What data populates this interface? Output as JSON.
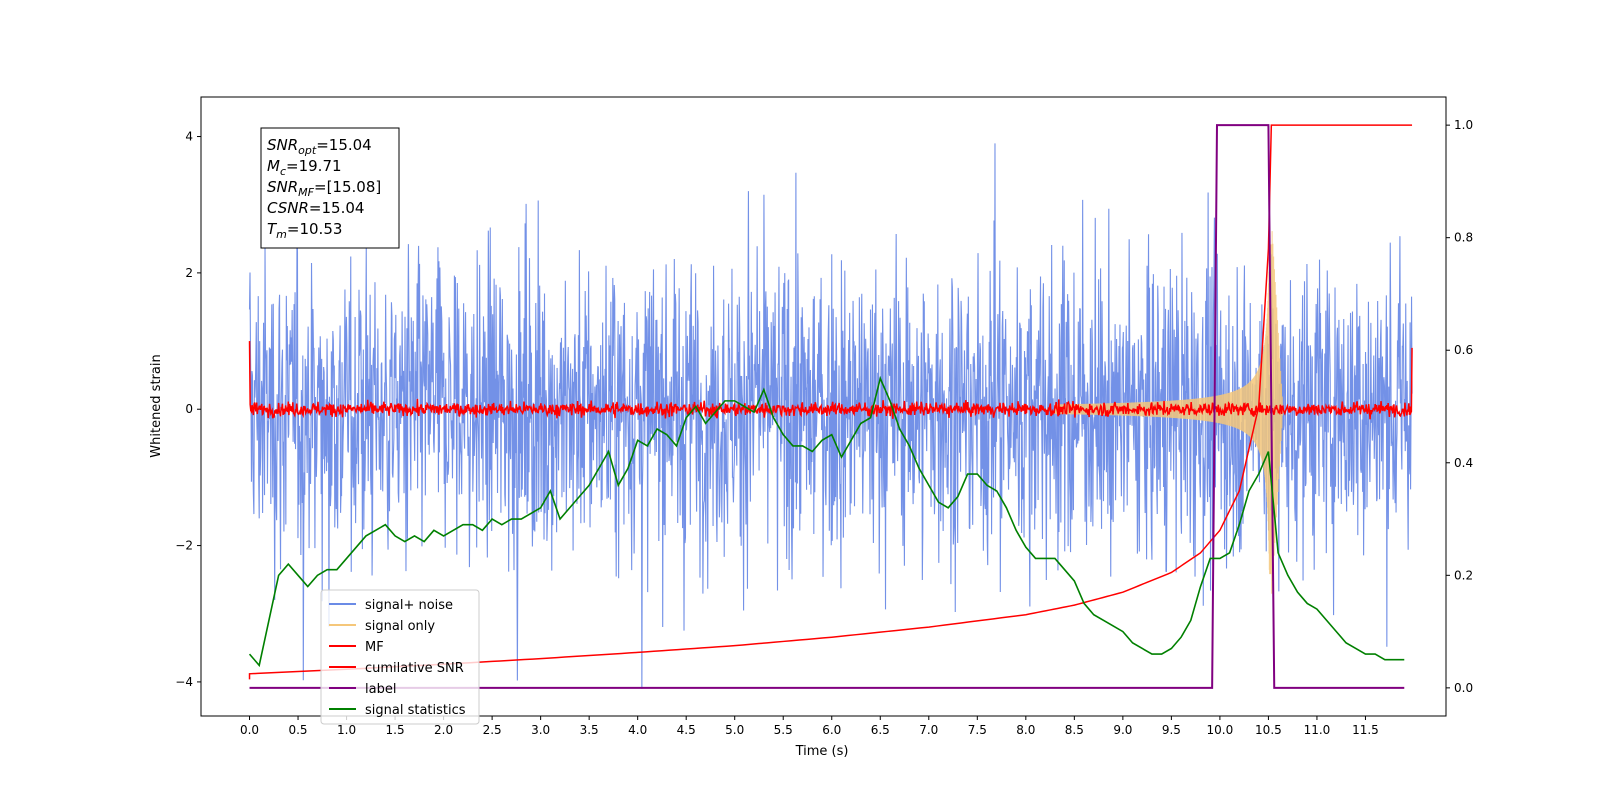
{
  "chart_data": {
    "type": "line",
    "xlabel": "Time (s)",
    "ylabel": "Whitened strain",
    "xlim": [
      -0.5,
      12.33
    ],
    "ylim": [
      -4.5,
      4.58
    ],
    "y2lim": [
      -0.05,
      1.05
    ],
    "x_ticks": [
      "0.0",
      "0.5",
      "1.0",
      "1.5",
      "2.0",
      "2.5",
      "3.0",
      "3.5",
      "4.0",
      "4.5",
      "5.0",
      "5.5",
      "6.0",
      "6.5",
      "7.0",
      "7.5",
      "8.0",
      "8.5",
      "9.0",
      "9.5",
      "10.0",
      "10.5",
      "11.0",
      "11.5"
    ],
    "x_tick_values": [
      0,
      0.5,
      1,
      1.5,
      2,
      2.5,
      3,
      3.5,
      4,
      4.5,
      5,
      5.5,
      6,
      6.5,
      7,
      7.5,
      8,
      8.5,
      9,
      9.5,
      10,
      10.5,
      11,
      11.5
    ],
    "y_ticks": [
      "4",
      "2",
      "0",
      "−2",
      "−4"
    ],
    "y_tick_values": [
      4,
      2,
      0,
      -2,
      -4
    ],
    "y2_ticks": [
      "1.0",
      "0.8",
      "0.6",
      "0.4",
      "0.2",
      "0.0"
    ],
    "y2_tick_values": [
      1.0,
      0.8,
      0.6,
      0.4,
      0.2,
      0.0
    ],
    "annotation": {
      "lines": [
        {
          "base": "SNR",
          "sub": "opt",
          "value": "=15.04"
        },
        {
          "base": "M",
          "sub": "c",
          "value": "=19.71"
        },
        {
          "base": "SNR",
          "sub": "MF",
          "value": "=[15.08]"
        },
        {
          "base": "CSNR",
          "sub": "",
          "value": "=15.04"
        },
        {
          "base": "T",
          "sub": "m",
          "value": "=10.53"
        }
      ]
    },
    "legend": {
      "placement": "lower-left",
      "entries": [
        {
          "label": "signal+ noise",
          "color": "#6b8be6"
        },
        {
          "label": "signal only",
          "color": "#f5c77a"
        },
        {
          "label": "MF",
          "color": "#ff0000"
        },
        {
          "label": "cumilative SNR",
          "color": "#ff0000"
        },
        {
          "label": "label",
          "color": "#800080"
        },
        {
          "label": "signal statistics",
          "color": "#008000"
        }
      ]
    },
    "series": [
      {
        "name": "signal+ noise",
        "axis": "left",
        "color": "#6b8be6",
        "description_amplitude": 1.1,
        "x_range": [
          0,
          11.98
        ]
      },
      {
        "name": "signal only",
        "axis": "left",
        "color": "#f5c77a",
        "chirp_end": 10.53
      },
      {
        "name": "MF",
        "axis": "left",
        "color": "#ff0000",
        "x_range": [
          0,
          11.98
        ]
      },
      {
        "name": "cumilative SNR",
        "axis": "right",
        "color": "#ff0000",
        "x": [
          0,
          1,
          2,
          3,
          4,
          5,
          6,
          7,
          8,
          8.5,
          9,
          9.5,
          9.8,
          10.0,
          10.2,
          10.4,
          10.5,
          10.53,
          11.98
        ],
        "y": [
          0.025,
          0.033,
          0.042,
          0.052,
          0.063,
          0.075,
          0.09,
          0.108,
          0.13,
          0.147,
          0.17,
          0.205,
          0.24,
          0.28,
          0.35,
          0.5,
          0.78,
          1.0,
          1.0
        ]
      },
      {
        "name": "label",
        "axis": "right",
        "color": "#800080",
        "x": [
          0,
          9.92,
          9.97,
          10.5,
          10.56,
          11.9
        ],
        "y": [
          0,
          0,
          1,
          1,
          0,
          0
        ]
      },
      {
        "name": "signal statistics",
        "axis": "right",
        "color": "#008000",
        "x": [
          0,
          0.1,
          0.2,
          0.3,
          0.4,
          0.5,
          0.6,
          0.7,
          0.8,
          0.9,
          1.0,
          1.1,
          1.2,
          1.3,
          1.4,
          1.5,
          1.6,
          1.7,
          1.8,
          1.9,
          2.0,
          2.1,
          2.2,
          2.3,
          2.4,
          2.5,
          2.6,
          2.7,
          2.8,
          2.9,
          3.0,
          3.1,
          3.2,
          3.3,
          3.4,
          3.5,
          3.6,
          3.7,
          3.8,
          3.9,
          4.0,
          4.1,
          4.2,
          4.3,
          4.4,
          4.5,
          4.6,
          4.7,
          4.8,
          4.9,
          5.0,
          5.1,
          5.2,
          5.3,
          5.4,
          5.5,
          5.6,
          5.7,
          5.8,
          5.9,
          6.0,
          6.1,
          6.2,
          6.3,
          6.4,
          6.5,
          6.6,
          6.7,
          6.8,
          6.9,
          7.0,
          7.1,
          7.2,
          7.3,
          7.4,
          7.5,
          7.6,
          7.7,
          7.8,
          7.9,
          8.0,
          8.1,
          8.2,
          8.3,
          8.4,
          8.5,
          8.6,
          8.7,
          8.8,
          8.9,
          9.0,
          9.1,
          9.2,
          9.3,
          9.4,
          9.5,
          9.6,
          9.7,
          9.8,
          9.9,
          10.0,
          10.1,
          10.2,
          10.3,
          10.4,
          10.5,
          10.6,
          10.7,
          10.8,
          10.9,
          11.0,
          11.1,
          11.2,
          11.3,
          11.4,
          11.5,
          11.6,
          11.7,
          11.8,
          11.9
        ],
        "y": [
          0.06,
          0.04,
          0.12,
          0.2,
          0.22,
          0.2,
          0.18,
          0.2,
          0.21,
          0.21,
          0.23,
          0.25,
          0.27,
          0.28,
          0.29,
          0.27,
          0.26,
          0.27,
          0.26,
          0.28,
          0.27,
          0.28,
          0.29,
          0.29,
          0.28,
          0.3,
          0.29,
          0.3,
          0.3,
          0.31,
          0.32,
          0.35,
          0.3,
          0.32,
          0.34,
          0.36,
          0.39,
          0.42,
          0.36,
          0.39,
          0.44,
          0.43,
          0.46,
          0.45,
          0.43,
          0.48,
          0.5,
          0.47,
          0.49,
          0.51,
          0.51,
          0.5,
          0.49,
          0.53,
          0.48,
          0.45,
          0.43,
          0.43,
          0.42,
          0.44,
          0.45,
          0.41,
          0.44,
          0.47,
          0.48,
          0.55,
          0.51,
          0.46,
          0.43,
          0.39,
          0.36,
          0.33,
          0.32,
          0.34,
          0.38,
          0.38,
          0.36,
          0.35,
          0.32,
          0.28,
          0.25,
          0.23,
          0.23,
          0.23,
          0.21,
          0.19,
          0.15,
          0.13,
          0.12,
          0.11,
          0.1,
          0.08,
          0.07,
          0.06,
          0.06,
          0.07,
          0.09,
          0.12,
          0.18,
          0.23,
          0.23,
          0.24,
          0.29,
          0.35,
          0.38,
          0.42,
          0.24,
          0.2,
          0.17,
          0.15,
          0.14,
          0.12,
          0.1,
          0.08,
          0.07,
          0.06,
          0.06,
          0.05,
          0.05,
          0.05
        ]
      }
    ]
  }
}
